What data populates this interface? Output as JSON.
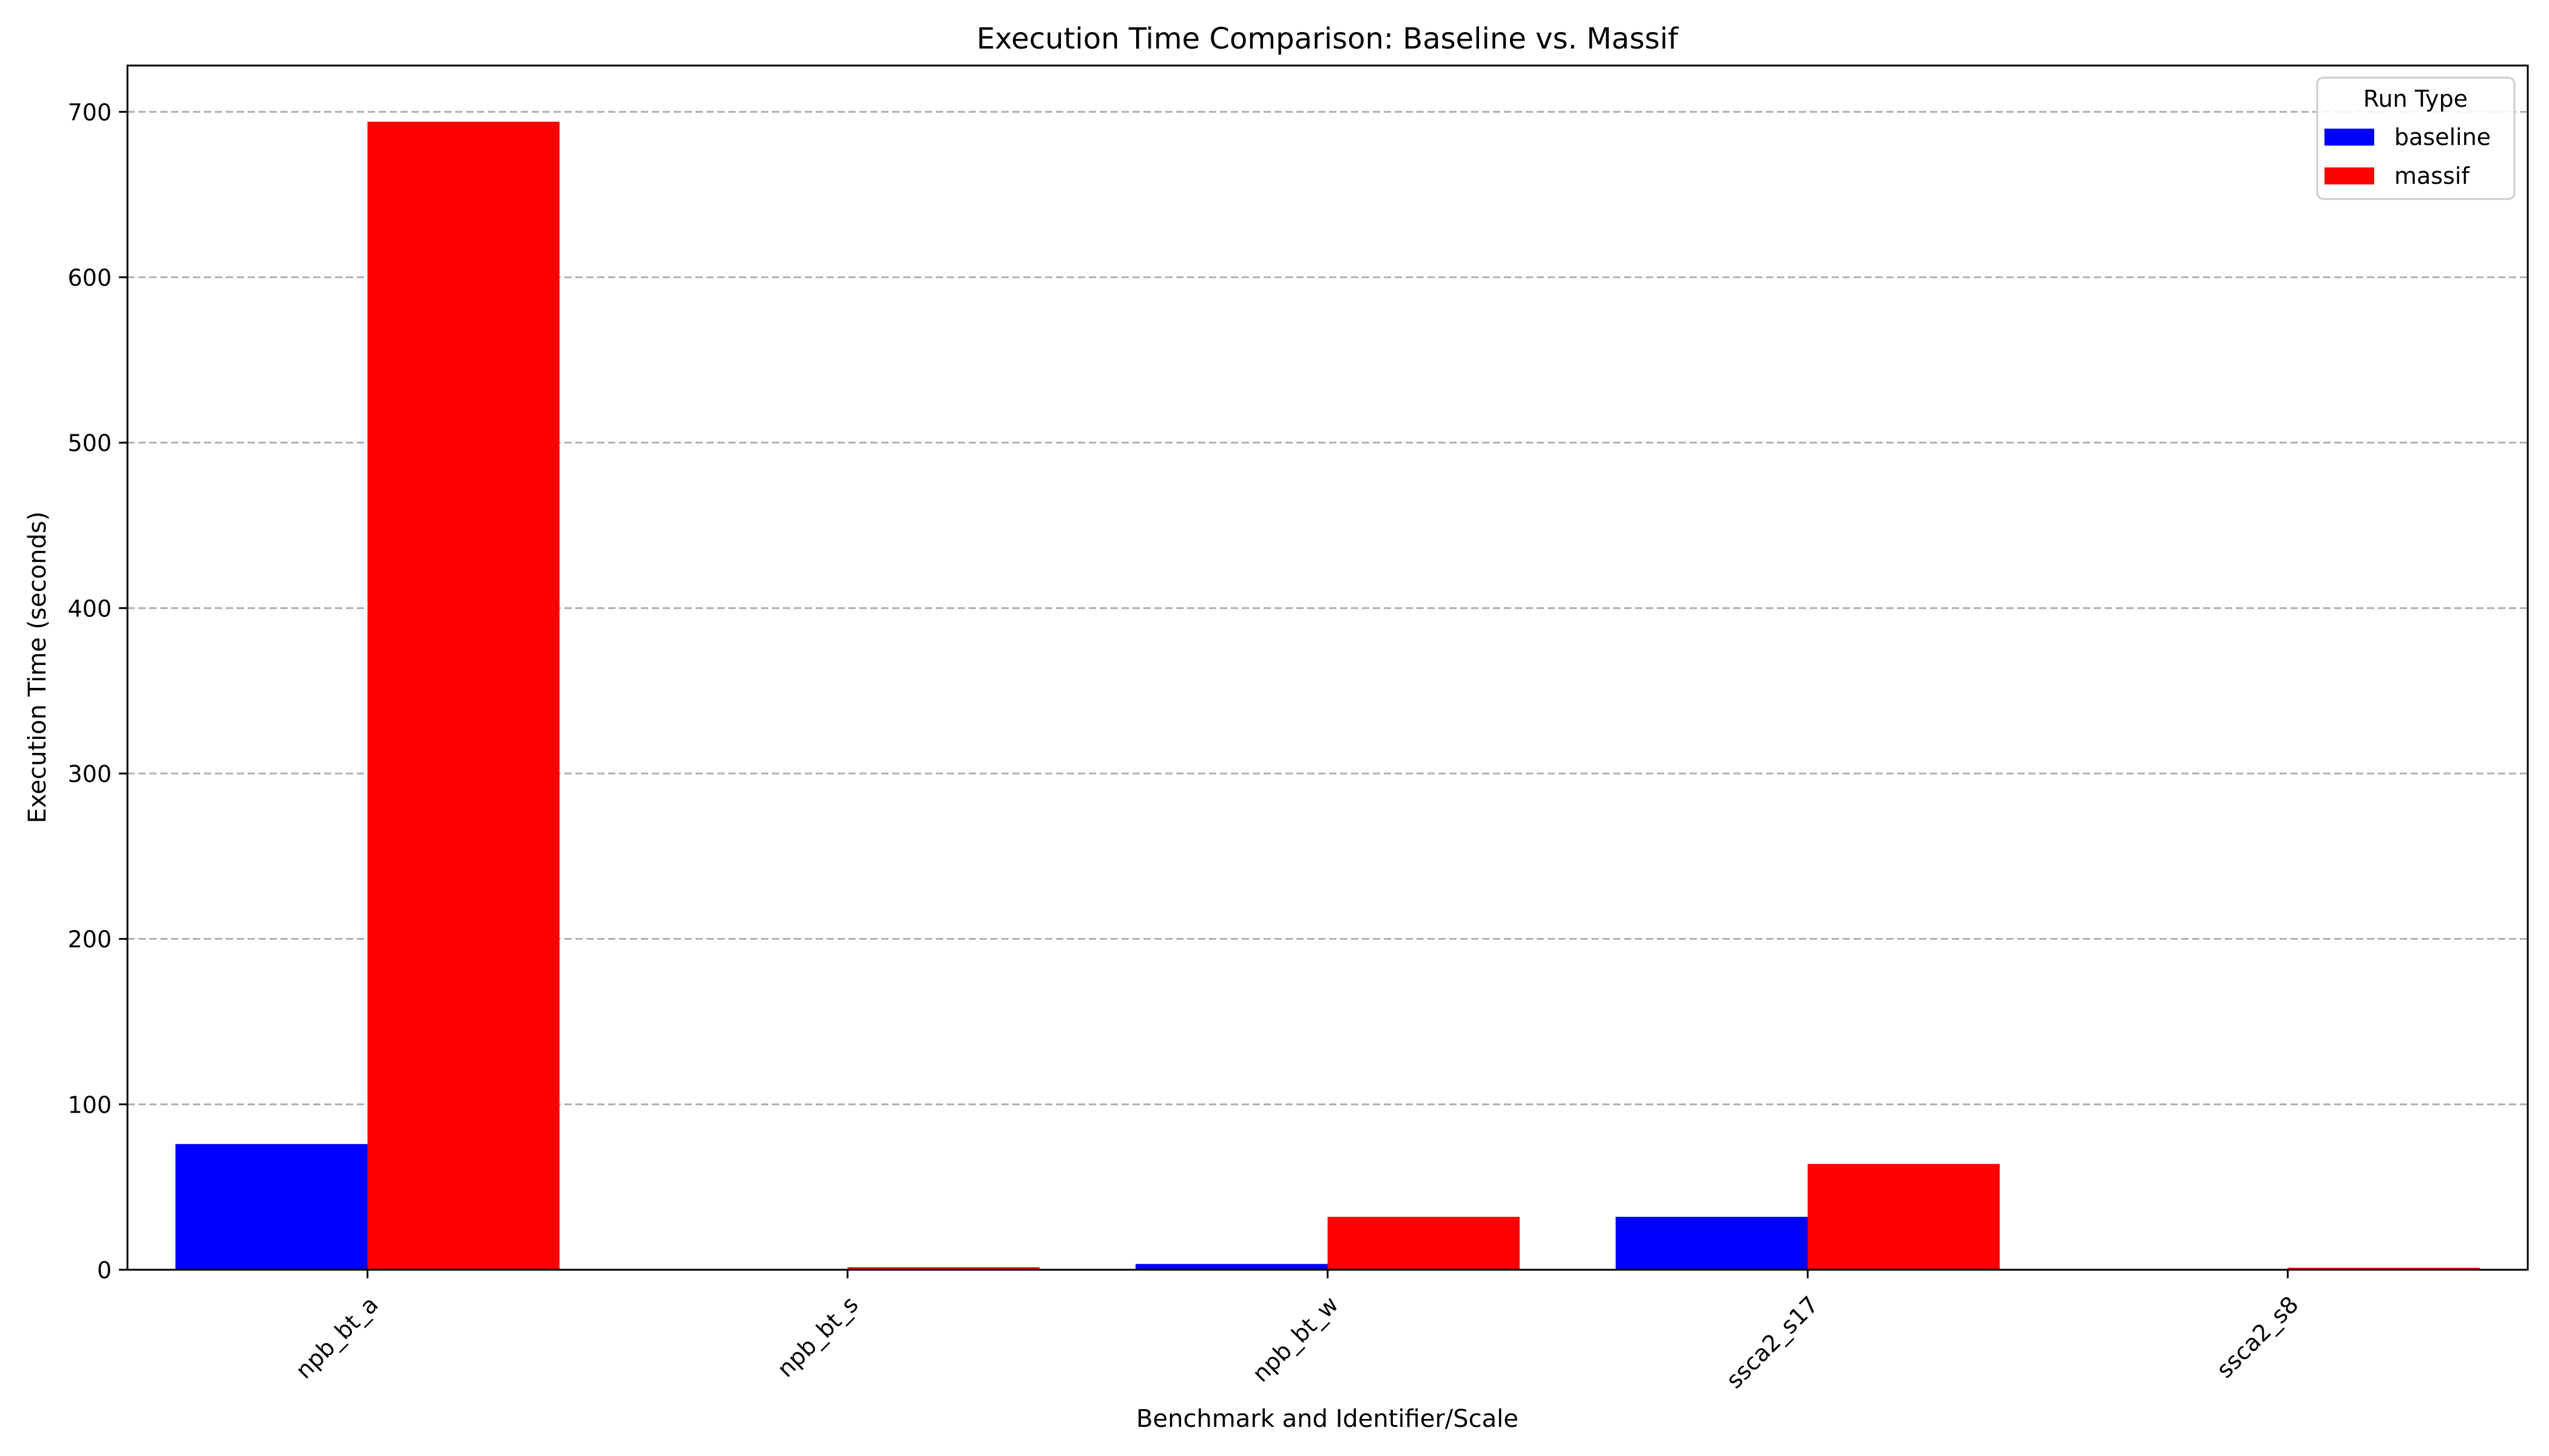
{
  "chart_data": {
    "type": "bar",
    "title": "Execution Time Comparison: Baseline vs. Massif",
    "xlabel": "Benchmark and Identifier/Scale",
    "ylabel": "Execution Time (seconds)",
    "categories": [
      "npb_bt_a",
      "npb_bt_s",
      "npb_bt_w",
      "ssca2_s17",
      "ssca2_s8"
    ],
    "series": [
      {
        "name": "baseline",
        "color": "#0000ff",
        "values": [
          76,
          0.1,
          3.5,
          32,
          0.1
        ]
      },
      {
        "name": "massif",
        "color": "#ff0000",
        "values": [
          694,
          1.5,
          32,
          64,
          1.2
        ]
      }
    ],
    "ylim": [
      0,
      728
    ],
    "yticks": [
      0,
      100,
      200,
      300,
      400,
      500,
      600,
      700
    ],
    "grid": "y-dashed",
    "legend": {
      "title": "Run Type",
      "position": "top-right"
    },
    "xtick_rotation": 45
  }
}
